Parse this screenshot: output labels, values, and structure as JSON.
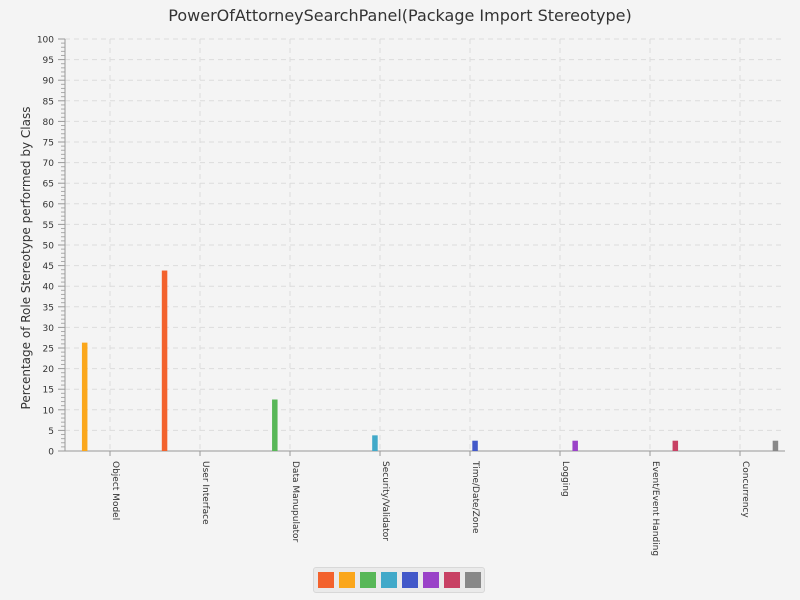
{
  "chart_data": {
    "type": "bar",
    "title": "PowerOfAttorneySearchPanel(Package Import Stereotype)",
    "xlabel": "",
    "ylabel": "Percentage of Role Stereotype performed by Class",
    "ylim": [
      0,
      100
    ],
    "categories": [
      "Object Model",
      "User Interface",
      "Data Manupulator",
      "Security/Validator",
      "Time/Date/Zone",
      "Logging",
      "Event/Event Handing",
      "Concurrency"
    ],
    "series": [
      {
        "color": "#f3622d",
        "values": [
          0,
          43.8,
          0,
          0,
          0,
          0,
          0,
          0
        ]
      },
      {
        "color": "#fba71b",
        "values": [
          26.3,
          0,
          0,
          0,
          0,
          0,
          0,
          0
        ]
      },
      {
        "color": "#57b757",
        "values": [
          0,
          0,
          12.5,
          0,
          0,
          0,
          0,
          0
        ]
      },
      {
        "color": "#41a9c9",
        "values": [
          0,
          0,
          0,
          3.8,
          0,
          0,
          0,
          0
        ]
      },
      {
        "color": "#4258c9",
        "values": [
          0,
          0,
          0,
          0,
          2.5,
          0,
          0,
          0
        ]
      },
      {
        "color": "#9a42c8",
        "values": [
          0,
          0,
          0,
          0,
          0,
          2.5,
          0,
          0
        ]
      },
      {
        "color": "#c84164",
        "values": [
          0,
          0,
          0,
          0,
          0,
          0,
          2.5,
          0
        ]
      },
      {
        "color": "#888888",
        "values": [
          0,
          0,
          0,
          0,
          0,
          0,
          0,
          2.5
        ]
      }
    ],
    "y_ticks": [
      0,
      5,
      10,
      15,
      20,
      25,
      30,
      35,
      40,
      45,
      50,
      55,
      60,
      65,
      70,
      75,
      80,
      85,
      90,
      95,
      100
    ],
    "grid": true,
    "legend": "bottom-center"
  }
}
